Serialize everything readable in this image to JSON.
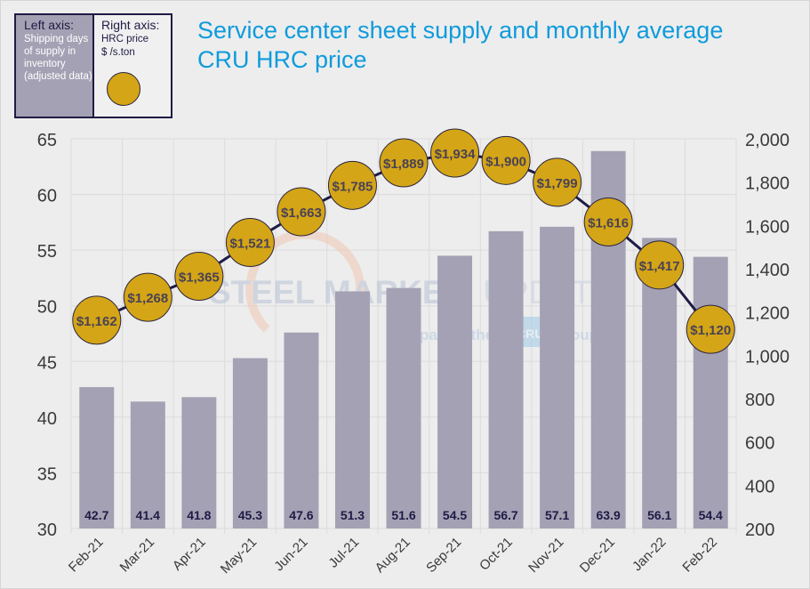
{
  "legend": {
    "left_heading": "Left axis:",
    "left_text": "Shipping days of supply in inventory (adjusted data)",
    "right_heading": "Right axis:",
    "right_text_1": "HRC price",
    "right_text_2": "$ /s.ton"
  },
  "watermark": {
    "line1_bold": "STEEL MARKET",
    "line1_light": "UPDATE",
    "line2_pre": "part of the",
    "line2_logo": "CRU",
    "line2_post": "Group"
  },
  "colors": {
    "bar": "#a5a1b4",
    "bubble": "#d4a516",
    "line": "#1e1b45",
    "title": "#0f9bdc"
  },
  "chart_data": {
    "type": "bar+line",
    "title": "Service center sheet supply and monthly average CRU HRC price",
    "categories": [
      "Feb-21",
      "Mar-21",
      "Apr-21",
      "May-21",
      "Jun-21",
      "Jul-21",
      "Aug-21",
      "Sep-21",
      "Oct-21",
      "Nov-21",
      "Dec-21",
      "Jan-22",
      "Feb-22"
    ],
    "series": [
      {
        "name": "Shipping days of supply in inventory (adjusted data)",
        "axis": "left",
        "type": "bar",
        "values": [
          42.7,
          41.4,
          41.8,
          45.3,
          47.6,
          51.3,
          51.6,
          54.5,
          56.7,
          57.1,
          63.9,
          56.1,
          54.4
        ]
      },
      {
        "name": "HRC price $ /s.ton",
        "axis": "right",
        "type": "line",
        "values": [
          1162,
          1268,
          1365,
          1521,
          1663,
          1785,
          1889,
          1934,
          1900,
          1799,
          1616,
          1417,
          1120
        ]
      }
    ],
    "left_axis": {
      "min": 30,
      "max": 65,
      "ticks": [
        30,
        35,
        40,
        45,
        50,
        55,
        60,
        65
      ]
    },
    "right_axis": {
      "min": 200,
      "max": 2000,
      "ticks": [
        "200",
        "400",
        "600",
        "800",
        "1,000",
        "1,200",
        "1,400",
        "1,600",
        "1,800",
        "2,000"
      ]
    },
    "grid": true
  }
}
